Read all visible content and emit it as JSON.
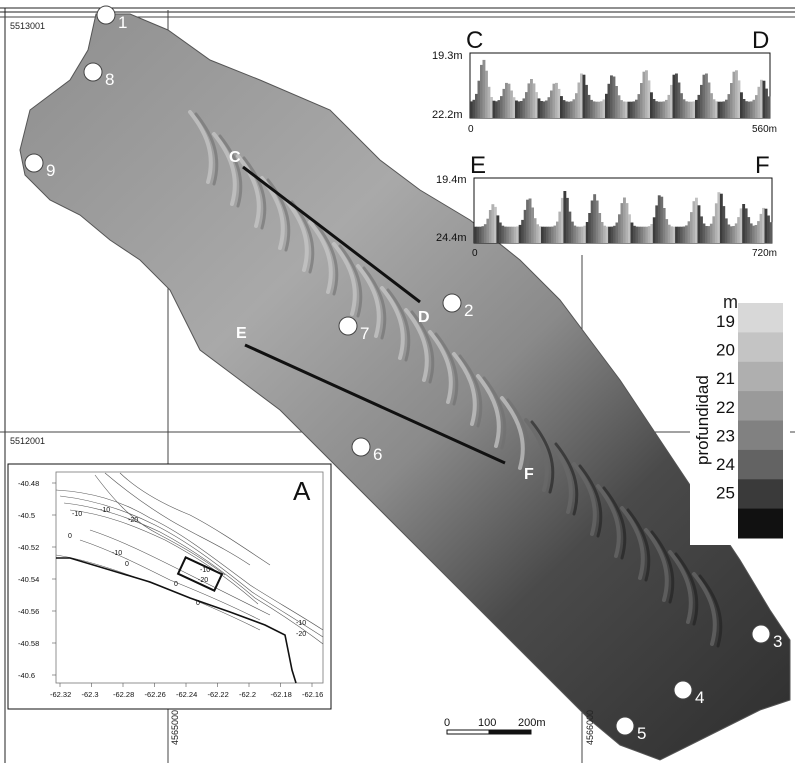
{
  "grid_labels": {
    "northing_top": "5513001",
    "northing_mid": "5512001",
    "easting_left": "4565000",
    "easting_right": "4566000"
  },
  "stations": [
    "1",
    "2",
    "3",
    "4",
    "5",
    "6",
    "7",
    "8",
    "9"
  ],
  "transects": {
    "c": "C",
    "d": "D",
    "e": "E",
    "f": "F"
  },
  "profile_cd": {
    "left_letter": "C",
    "right_letter": "D",
    "y_top": "19.3m",
    "y_bottom": "22.2m",
    "x_start": "0",
    "x_end": "560m"
  },
  "profile_ef": {
    "left_letter": "E",
    "right_letter": "F",
    "y_top": "19.4m",
    "y_bottom": "24.4m",
    "x_start": "0",
    "x_end": "720m"
  },
  "depth_legend": {
    "unit": "m",
    "title": "profundidad",
    "ticks": [
      "19",
      "20",
      "21",
      "22",
      "23",
      "24",
      "25"
    ],
    "colors": [
      "#d8d8d8",
      "#c4c4c4",
      "#afafaf",
      "#9a9a9a",
      "#818181",
      "#636363",
      "#3a3a3a",
      "#111111"
    ]
  },
  "scale_bar": {
    "labels": [
      "0",
      "100",
      "200m"
    ]
  },
  "inset_map": {
    "panel_letter": "A",
    "y_ticks": [
      "-40.48",
      "-40.5",
      "-40.52",
      "-40.54",
      "-40.56",
      "-40.58",
      "-40.6"
    ],
    "x_ticks": [
      "-62.32",
      "-62.3",
      "-62.28",
      "-62.26",
      "-62.24",
      "-62.22",
      "-62.2",
      "-62.18",
      "-62.16"
    ],
    "contour_labels": [
      "-10",
      "-20",
      "-10",
      "0",
      "-10",
      "0",
      "-10",
      "-20",
      "0",
      "0",
      "-10",
      "-20"
    ]
  }
}
